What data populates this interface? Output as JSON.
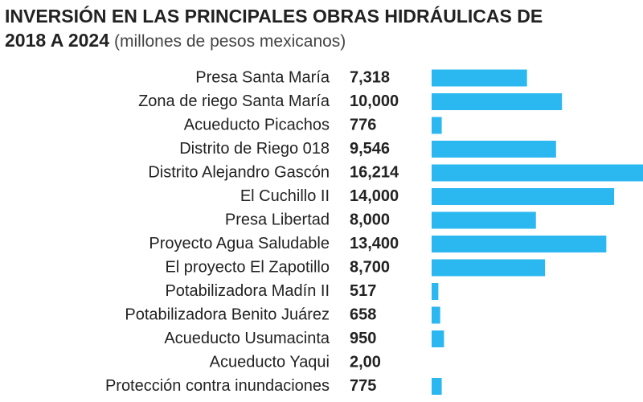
{
  "chart_data": {
    "type": "bar",
    "orientation": "horizontal",
    "title": "INVERSIÓN EN LAS PRINCIPALES OBRAS HIDRÁULICAS DE",
    "title_line2": "2018 A 2024",
    "subtitle": "(millones de pesos mexicanos)",
    "categories": [
      "Presa Santa María",
      "Zona de riego Santa María",
      "Acueducto Picachos",
      "Distrito de Riego 018",
      "Distrito Alejandro Gascón",
      "El Cuchillo II",
      "Presa Libertad",
      "Proyecto Agua Saludable",
      "El proyecto El Zapotillo",
      "Potabilizadora Madín II",
      "Potabilizadora Benito Juárez",
      "Acueducto Usumacinta",
      "Acueducto Yaqui",
      "Protección contra inundaciones"
    ],
    "values": [
      7318,
      10000,
      776,
      9546,
      16214,
      14000,
      8000,
      13400,
      8700,
      517,
      658,
      950,
      2,
      775
    ],
    "value_labels": [
      "7,318",
      "10,000",
      "776",
      "9,546",
      "16,214",
      "14,000",
      "8,000",
      "13,400",
      "8,700",
      "517",
      "658",
      "950",
      "2,00",
      "775"
    ],
    "color": "#2bb8f0"
  }
}
